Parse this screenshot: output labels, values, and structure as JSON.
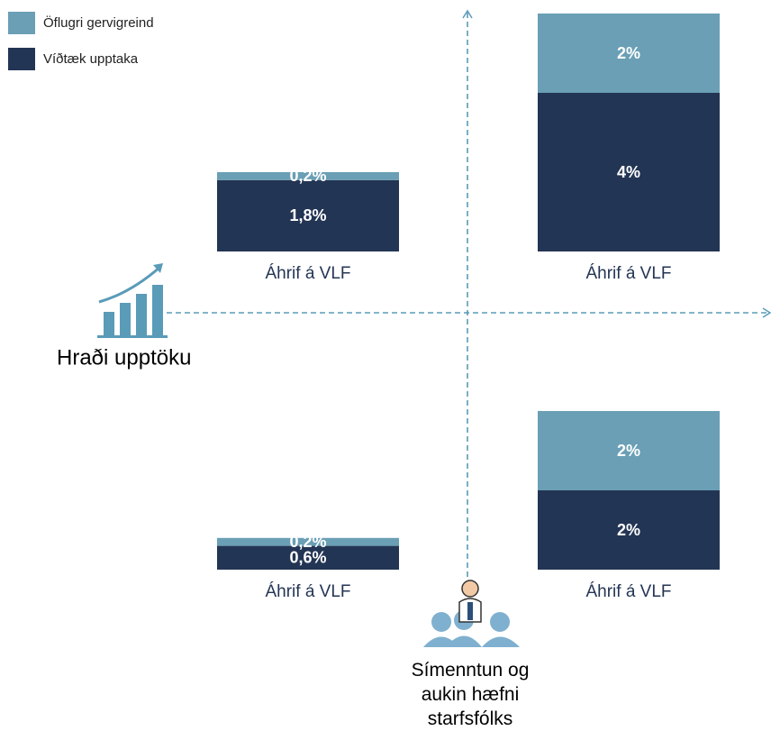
{
  "chart_data": {
    "type": "bar",
    "stacked": true,
    "categories": [
      "Áhrif á VLF",
      "Áhrif á VLF",
      "Áhrif á VLF",
      "Áhrif á VLF"
    ],
    "series": [
      {
        "name": "Öflugri gervigreind",
        "color": "#6a9fb5",
        "values": [
          0.2,
          2,
          0.2,
          2
        ],
        "value_labels": [
          "0,2%",
          "2%",
          "0,2%",
          "2%"
        ]
      },
      {
        "name": "Víðtæk upptaka",
        "color": "#233554",
        "values": [
          1.8,
          4,
          0.6,
          2
        ],
        "value_labels": [
          "1,8%",
          "4%",
          "0,6%",
          "2%"
        ]
      }
    ],
    "x_label": "Hraði upptöku",
    "y_label": "Símenntun og aukin hæfni starfsfólks"
  }
}
